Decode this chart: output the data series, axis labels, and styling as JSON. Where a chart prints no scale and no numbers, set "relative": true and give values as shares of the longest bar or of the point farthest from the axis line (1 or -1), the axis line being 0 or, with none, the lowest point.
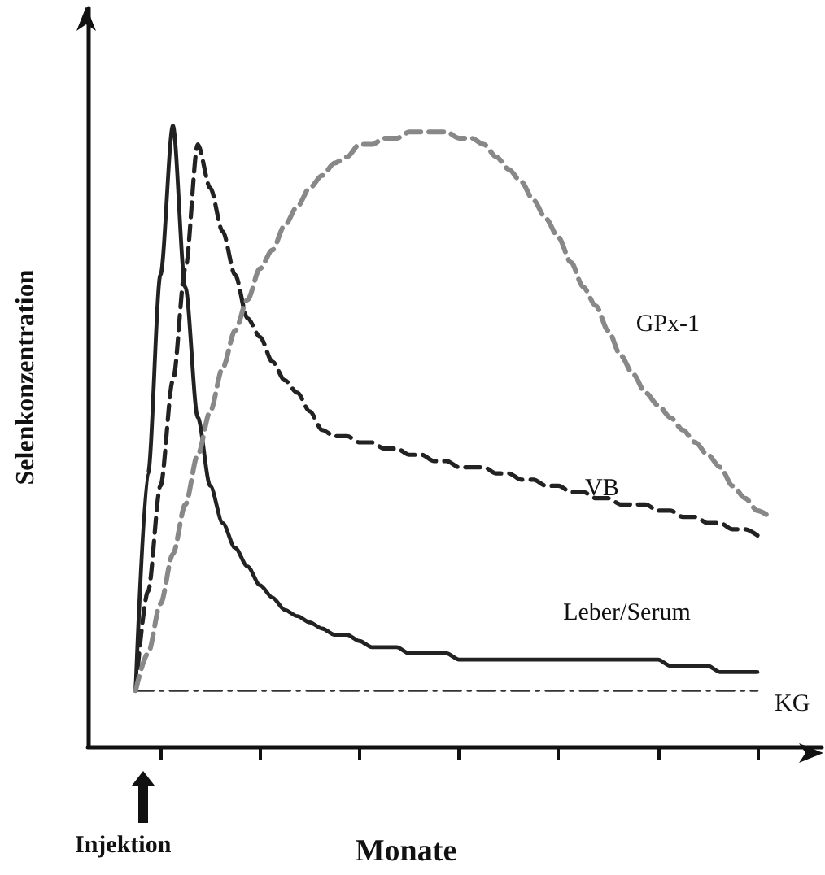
{
  "chart_data": {
    "type": "line",
    "relative": true,
    "xlabel": "Monate",
    "ylabel": "Selenkonzentration",
    "annotations": [
      "Injektion"
    ],
    "marker": "none",
    "categories": [
      null,
      null,
      null,
      null,
      null,
      null,
      null,
      null,
      null,
      null,
      null,
      null,
      null,
      null,
      null,
      null,
      null,
      null,
      null,
      null,
      null,
      null,
      null,
      null,
      null,
      null,
      null,
      null,
      null,
      null,
      null,
      null,
      null,
      null,
      null,
      null,
      null,
      null,
      null,
      null,
      null,
      null,
      null,
      null,
      null,
      null,
      null,
      null,
      null,
      null,
      null,
      null
    ],
    "series": [
      {
        "name": "GPx-1",
        "color": "#888888",
        "line_style": "dashed",
        "values": [
          0.09,
          0.15,
          0.23,
          0.31,
          0.39,
          0.47,
          0.54,
          0.61,
          0.67,
          0.72,
          0.77,
          0.8,
          0.84,
          0.87,
          0.9,
          0.92,
          0.94,
          0.95,
          0.97,
          0.97,
          0.98,
          0.98,
          0.99,
          0.99,
          0.99,
          0.99,
          0.98,
          0.98,
          0.97,
          0.95,
          0.93,
          0.91,
          0.88,
          0.85,
          0.82,
          0.78,
          0.74,
          0.71,
          0.67,
          0.63,
          0.6,
          0.57,
          0.55,
          0.53,
          0.51,
          0.49,
          0.47,
          0.45,
          0.42,
          0.4,
          0.38,
          0.37
        ]
      },
      {
        "name": "VB",
        "color": "#222222",
        "line_style": "dashed",
        "values": [
          0.09,
          0.25,
          0.42,
          0.59,
          0.77,
          0.97,
          0.9,
          0.83,
          0.76,
          0.69,
          0.66,
          0.62,
          0.59,
          0.57,
          0.54,
          0.51,
          0.5,
          0.5,
          0.49,
          0.49,
          0.48,
          0.48,
          0.47,
          0.47,
          0.46,
          0.46,
          0.45,
          0.45,
          0.45,
          0.44,
          0.44,
          0.43,
          0.43,
          0.42,
          0.42,
          0.41,
          0.41,
          0.4,
          0.4,
          0.39,
          0.39,
          0.39,
          0.38,
          0.38,
          0.37,
          0.37,
          0.36,
          0.36,
          0.35,
          0.35,
          0.34,
          null
        ]
      },
      {
        "name": "Leber/Serum",
        "color": "#222222",
        "line_style": "solid",
        "values": [
          0.09,
          0.44,
          0.76,
          1,
          0.74,
          0.53,
          0.42,
          0.36,
          0.32,
          0.29,
          0.26,
          0.24,
          0.22,
          0.21,
          0.2,
          0.19,
          0.18,
          0.18,
          0.17,
          0.16,
          0.16,
          0.16,
          0.15,
          0.15,
          0.15,
          0.15,
          0.14,
          0.14,
          0.14,
          0.14,
          0.14,
          0.14,
          0.14,
          0.14,
          0.14,
          0.14,
          0.14,
          0.14,
          0.14,
          0.14,
          0.14,
          0.14,
          0.14,
          0.13,
          0.13,
          0.13,
          0.13,
          0.12,
          0.12,
          0.12,
          0.12,
          null
        ]
      },
      {
        "name": "KG",
        "color": "#333333",
        "line_style": "dashed",
        "values": [
          0.09,
          0.09,
          0.09,
          0.09,
          0.09,
          0.09,
          0.09,
          0.09,
          0.09,
          0.09,
          0.09,
          0.09,
          0.09,
          0.09,
          0.09,
          0.09,
          0.09,
          0.09,
          0.09,
          0.09,
          0.09,
          0.09,
          0.09,
          0.09,
          0.09,
          0.09,
          0.09,
          0.09,
          0.09,
          0.09,
          0.09,
          0.09,
          0.09,
          0.09,
          0.09,
          0.09,
          0.09,
          0.09,
          0.09,
          0.09,
          0.09,
          0.09,
          0.09,
          0.09,
          0.09,
          0.09,
          0.09,
          0.09,
          0.09,
          0.09,
          0.09,
          null
        ]
      }
    ]
  }
}
